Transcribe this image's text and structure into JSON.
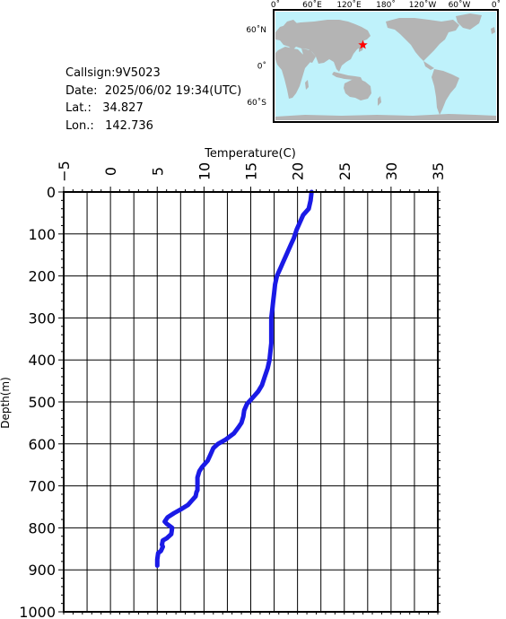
{
  "meta": {
    "callsign_label": "Callsign:",
    "callsign": "9V5023",
    "date_label": "Date:",
    "date": "2025/06/02 19:34(UTC)",
    "lat_label": "Lat.:",
    "lat": "34.827",
    "lon_label": "Lon.:",
    "lon": "142.736"
  },
  "map": {
    "top_labels": [
      "0˚",
      "60˚E",
      "120˚E",
      "180˚",
      "120˚W",
      "60˚W",
      "0˚"
    ],
    "lat_labels": [
      "60˚N",
      "0˚",
      "60˚S"
    ],
    "ocean_color": "#bff2fb",
    "land_color": "#b4b4b4",
    "marker_color": "#ff0000",
    "marker_shape": "star",
    "marker_lat": 34.827,
    "marker_lon": 142.736
  },
  "chart_data": {
    "type": "line",
    "title": "",
    "xlabel": "Temperature(C)",
    "ylabel": "Depth(m)",
    "xlim": [
      -5,
      35
    ],
    "ylim": [
      1000,
      0
    ],
    "x_axis_position": "top",
    "y_inverted": true,
    "x_ticks": [
      -5,
      0,
      5,
      10,
      15,
      20,
      25,
      30,
      35
    ],
    "y_ticks": [
      0,
      100,
      200,
      300,
      400,
      500,
      600,
      700,
      800,
      900,
      1000
    ],
    "grid": true,
    "line_color": "#1a1ae6",
    "series": [
      {
        "x": [
          21.5,
          21.4,
          21.2,
          20.6,
          20.2,
          19.9,
          19.6,
          19.3,
          19.0,
          18.7,
          18.4,
          18.2,
          18.0,
          17.8,
          17.6,
          17.5,
          17.4,
          17.3,
          17.2,
          17.2,
          17.2,
          17.2,
          17.1,
          17.0,
          16.8,
          16.5,
          16.2,
          15.8,
          15.4,
          15.0,
          14.6,
          14.3,
          14.2,
          14.0,
          13.7,
          13.2,
          12.3,
          11.5,
          11.0,
          10.7,
          10.4,
          9.8,
          9.5,
          9.3,
          9.3,
          9.3,
          9.2,
          9.1,
          8.7,
          8.3,
          7.6,
          6.8,
          6.1,
          5.8,
          6.0,
          6.6,
          6.5,
          6.0,
          5.6,
          5.5,
          5.6,
          5.4,
          5.1,
          5.0,
          5.0
        ],
        "y": [
          0,
          20,
          40,
          55,
          75,
          90,
          110,
          125,
          140,
          155,
          170,
          180,
          190,
          200,
          220,
          240,
          260,
          280,
          300,
          320,
          340,
          360,
          380,
          400,
          420,
          440,
          460,
          475,
          485,
          495,
          505,
          520,
          535,
          550,
          560,
          575,
          590,
          600,
          610,
          625,
          640,
          655,
          665,
          680,
          700,
          710,
          715,
          725,
          735,
          745,
          755,
          765,
          775,
          785,
          790,
          800,
          815,
          825,
          830,
          840,
          845,
          855,
          860,
          875,
          890
        ]
      }
    ]
  }
}
